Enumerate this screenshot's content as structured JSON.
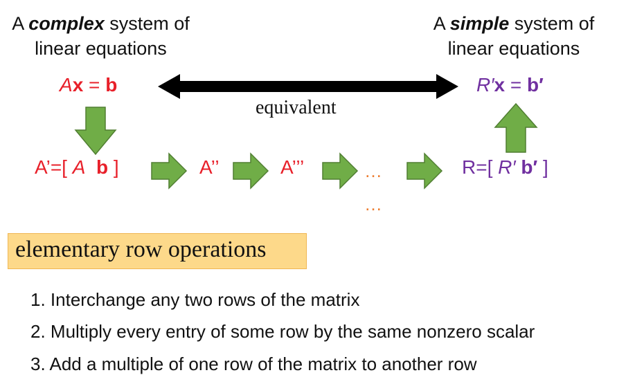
{
  "left_caption": {
    "line1_pre": "A ",
    "line1_em": "complex",
    "line1_post": " system of",
    "line2": "linear equations"
  },
  "right_caption": {
    "line1_pre": "A ",
    "line1_em": "simple",
    "line1_post": " system of",
    "line2": "linear equations"
  },
  "left_equation": {
    "A": "A",
    "x": "x",
    "eq": " = ",
    "b": "b"
  },
  "right_equation": {
    "R": "R′",
    "x": "x",
    "eq": " = ",
    "b": "b′"
  },
  "equivalence_label": "equivalent",
  "stages": {
    "s1_pre": "A’=[ ",
    "s1_A": "A",
    "s1_b": "b",
    "s1_post": " ]",
    "s2": "A’’",
    "s3": "A’’’",
    "s4": "…",
    "s5_pre": "R=[ ",
    "s5_R": "R′",
    "s5_b": "b′",
    "s5_post": " ]"
  },
  "vertical_dots": "…",
  "operations_label": "elementary row operations",
  "rules": [
    "1. Interchange any two rows of the matrix",
    "2. Multiply every entry of some row by the same nonzero scalar",
    "3. Add a multiple of one row of the matrix to another row"
  ],
  "colors": {
    "arrow_green": "#70ad47",
    "arrow_green_border": "#507e32",
    "red": "#e8202a",
    "purple": "#7030a0",
    "dots_orange": "#ed7d31",
    "box_fill": "#fdd98a"
  }
}
